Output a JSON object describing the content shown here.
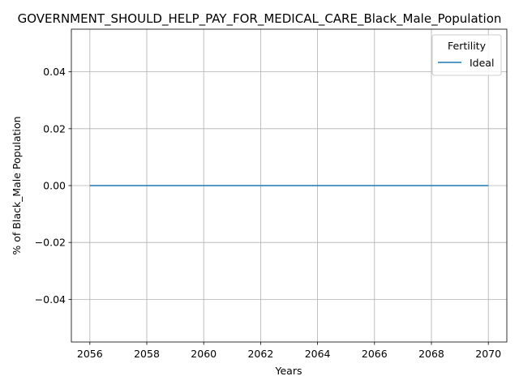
{
  "chart_data": {
    "type": "line",
    "title": "GOVERNMENT_SHOULD_HELP_PAY_FOR_MEDICAL_CARE_Black_Male_Population",
    "xlabel": "Years",
    "ylabel": "% of Black_Male Population",
    "xlim": [
      2055.35,
      2070.65
    ],
    "ylim": [
      -0.055,
      0.055
    ],
    "x_ticks": [
      2056,
      2058,
      2060,
      2062,
      2064,
      2066,
      2068,
      2070
    ],
    "y_ticks": [
      -0.04,
      -0.02,
      0.0,
      0.02,
      0.04
    ],
    "y_tick_labels": [
      "−0.04",
      "−0.02",
      "0.00",
      "0.02",
      "0.04"
    ],
    "grid": true,
    "legend": {
      "title": "Fertility",
      "placement": "top-right"
    },
    "series": [
      {
        "name": "Ideal",
        "color": "#1f77b4",
        "x": [
          2056,
          2057,
          2058,
          2059,
          2060,
          2061,
          2062,
          2063,
          2064,
          2065,
          2066,
          2067,
          2068,
          2069,
          2070
        ],
        "y": [
          0,
          0,
          0,
          0,
          0,
          0,
          0,
          0,
          0,
          0,
          0,
          0,
          0,
          0,
          0
        ]
      }
    ]
  }
}
